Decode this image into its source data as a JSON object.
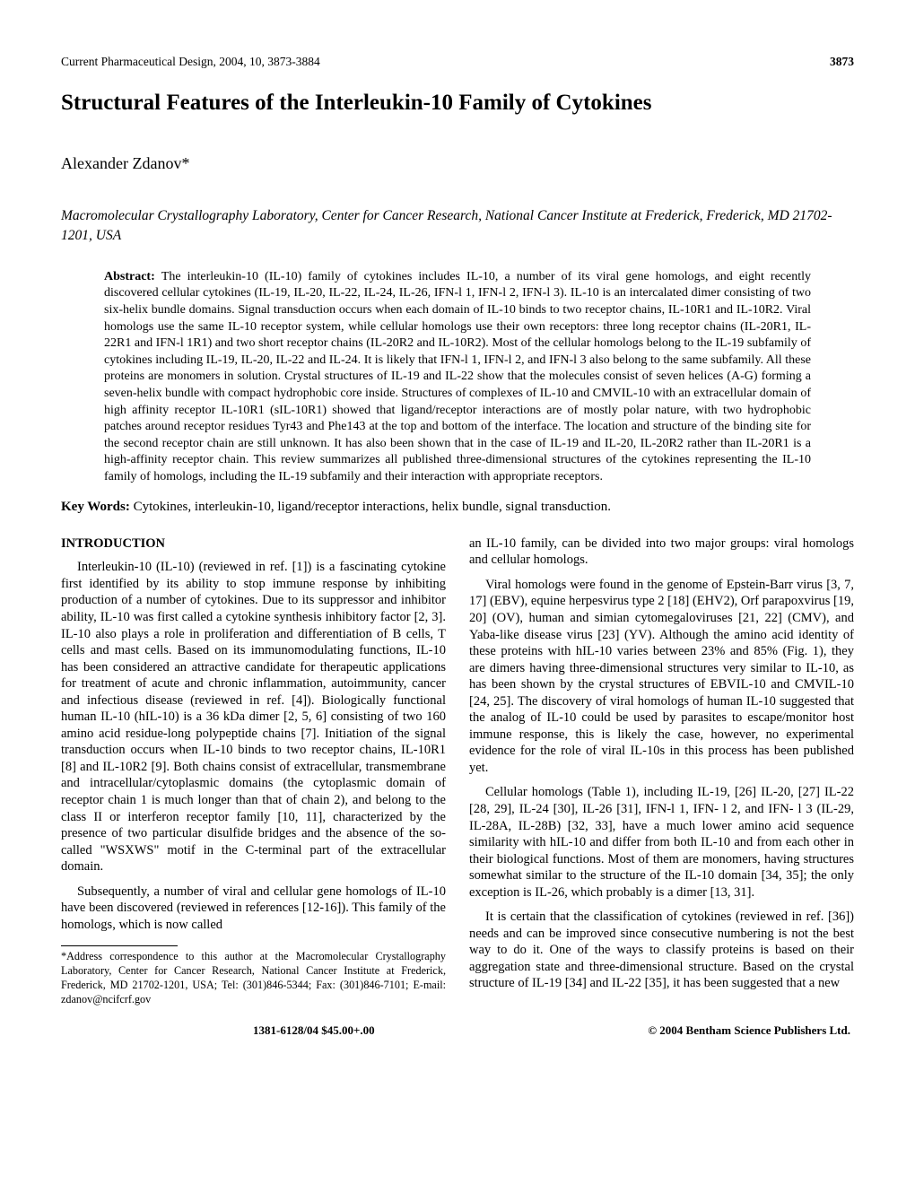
{
  "header": {
    "journal": "Current Pharmaceutical Design",
    "year": ", 2004",
    "volume": ", 10,",
    "pages": " 3873-3884",
    "page_number": "3873"
  },
  "title": "Structural Features of the Interleukin-10 Family of Cytokines",
  "author": "Alexander Zdanov*",
  "affiliation": "Macromolecular Crystallography Laboratory, Center for Cancer Research, National Cancer Institute at Frederick, Frederick, MD 21702-1201, USA",
  "abstract": {
    "label": "Abstract: ",
    "text": "The interleukin-10 (IL-10) family of cytokines includes IL-10, a number of its viral gene homologs, and eight recently discovered cellular cytokines (IL-19, IL-20, IL-22, IL-24, IL-26, IFN-l 1, IFN-l 2, IFN-l 3). IL-10 is an intercalated dimer consisting of two six-helix bundle domains. Signal transduction occurs when each domain of IL-10 binds to two receptor chains, IL-10R1 and IL-10R2. Viral homologs use the same IL-10 receptor system, while cellular homologs use their own receptors: three long receptor chains (IL-20R1, IL-22R1 and IFN-l 1R1) and two short receptor chains (IL-20R2 and IL-10R2). Most of the cellular homologs belong to the IL-19 subfamily of cytokines including IL-19, IL-20, IL-22 and IL-24. It is likely that IFN-l 1, IFN-l 2, and IFN-l 3 also belong to the same subfamily. All these proteins are monomers in solution. Crystal structures of IL-19 and IL-22 show that the molecules consist of seven helices (A-G) forming a seven-helix bundle with compact hydrophobic core inside. Structures of complexes of IL-10 and CMVIL-10 with an extracellular domain of high affinity receptor IL-10R1 (sIL-10R1) showed that ligand/receptor interactions are of mostly polar nature, with two hydrophobic patches around receptor residues Tyr43 and Phe143 at the top and bottom of the interface. The location and structure of the binding site for the second receptor chain are still unknown. It has also been shown that in the case of IL-19 and IL-20, IL-20R2 rather than IL-20R1 is a high-affinity receptor chain. This review summarizes all published three-dimensional structures of the cytokines representing the IL-10 family of homologs, including the IL-19 subfamily and their interaction with appropriate receptors."
  },
  "keywords": {
    "label": "Key Words: ",
    "text": "Cytokines, interleukin-10, ligand/receptor interactions, helix bundle, signal transduction."
  },
  "left_col": {
    "intro_head": "INTRODUCTION",
    "p1": "Interleukin-10 (IL-10) (reviewed in ref. [1]) is a fascinating cytokine first identified by its ability to stop immune response by inhibiting production of a number of cytokines. Due to its suppressor and inhibitor ability, IL-10 was first called a cytokine synthesis inhibitory factor [2, 3]. IL-10 also plays a role in proliferation and differentiation of B cells, T cells and mast cells. Based on its immunomodulating functions, IL-10 has been considered an attractive candidate for therapeutic applications for treatment of acute and chronic inflammation, autoimmunity, cancer and infectious disease (reviewed in ref. [4]). Biologically functional human IL-10 (hIL-10) is a 36 kDa dimer [2, 5, 6] consisting of two 160 amino acid residue-long polypeptide chains [7]. Initiation of the signal transduction occurs when IL-10 binds to two receptor chains, IL-10R1 [8] and IL-10R2 [9]. Both chains consist of extracellular, transmembrane and intracellular/cytoplasmic domains (the cytoplasmic domain of receptor chain 1 is much longer than that of chain 2), and belong to the class II or interferon receptor family [10, 11], characterized by the presence of two particular disulfide bridges and the absence of the so-called \"WSXWS\" motif in the C-terminal part of the extracellular domain.",
    "p2": "Subsequently, a number of viral and cellular gene homologs of IL-10 have been discovered (reviewed in references [12-16]). This family of the homologs, which is now called",
    "footnote": "*Address correspondence to this author at the Macromolecular Crystallography Laboratory, Center for Cancer Research, National Cancer Institute at Frederick, Frederick, MD 21702-1201, USA; Tel: (301)846-5344; Fax: (301)846-7101; E-mail: zdanov@ncifcrf.gov"
  },
  "right_col": {
    "p1": "an IL-10 family, can be divided into two major groups: viral homologs and cellular homologs.",
    "p2": "Viral homologs were found in the genome of Epstein-Barr virus [3, 7, 17] (EBV), equine herpesvirus type 2 [18] (EHV2), Orf parapoxvirus [19, 20] (OV), human and simian cytomegaloviruses [21, 22] (CMV), and Yaba-like disease virus [23] (YV). Although the amino acid identity of these proteins with hIL-10 varies between 23% and 85% (Fig. 1), they are dimers having three-dimensional structures very similar to IL-10, as has been shown by the crystal structures of EBVIL-10 and CMVIL-10 [24, 25]. The discovery of viral homologs of human IL-10 suggested that the analog of IL-10 could be used by parasites to escape/monitor host immune response, this is likely the case, however, no experimental evidence for the role of viral IL-10s in this process has been published yet.",
    "p3": "Cellular homologs (Table 1), including IL-19, [26] IL-20, [27] IL-22 [28, 29], IL-24 [30], IL-26 [31], IFN-l 1, IFN- l 2, and IFN- l 3 (IL-29, IL-28A, IL-28B) [32, 33], have a much lower amino acid sequence similarity with hIL-10 and differ from both IL-10 and from each other in their biological functions. Most of them are monomers, having structures somewhat similar to the structure of the IL-10 domain [34, 35]; the only exception is IL-26, which probably is a dimer [13, 31].",
    "p4": "It is certain that the classification of cytokines (reviewed in ref. [36]) needs and can be improved since consecutive numbering is not the best way to do it. One of the ways to classify proteins is based on their aggregation state and three-dimensional structure. Based on the crystal structure of IL-19 [34] and IL-22 [35], it has been suggested that a new"
  },
  "footer": {
    "left": "1381-6128/04 $45.00+.00",
    "right": "© 2004 Bentham Science Publishers Ltd."
  }
}
